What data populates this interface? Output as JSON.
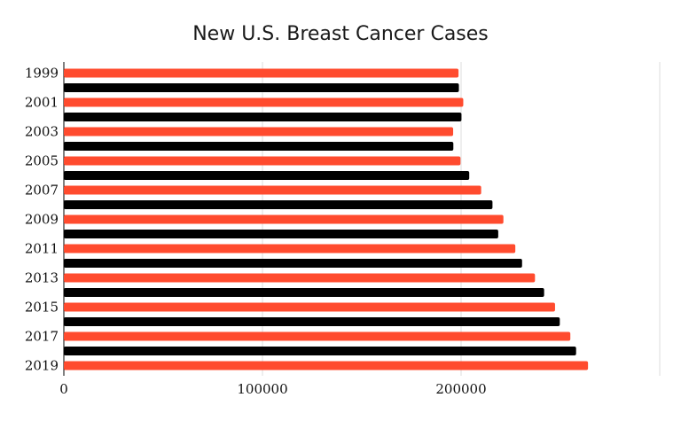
{
  "chart_data": {
    "type": "bar",
    "orientation": "horizontal",
    "title": "New U.S. Breast Cancer Cases",
    "categories": [
      "1999",
      "2000",
      "2001",
      "2002",
      "2003",
      "2004",
      "2005",
      "2006",
      "2007",
      "2008",
      "2009",
      "2010",
      "2011",
      "2012",
      "2013",
      "2014",
      "2015",
      "2016",
      "2017",
      "2018",
      "2019"
    ],
    "values": [
      198700,
      198900,
      201100,
      200200,
      196000,
      196100,
      199700,
      204100,
      210100,
      215800,
      221300,
      218700,
      227300,
      230700,
      237200,
      241800,
      247300,
      249700,
      255000,
      257900,
      263900
    ],
    "y_tick_labels": [
      "1999",
      "2001",
      "2003",
      "2005",
      "2007",
      "2009",
      "2011",
      "2013",
      "2015",
      "2017",
      "2019"
    ],
    "x_tick_labels": [
      "0",
      "100000",
      "200000"
    ],
    "xlim": [
      0,
      300000
    ],
    "bar_colors": [
      "#ff4b2e",
      "#000000"
    ],
    "grid": true,
    "legend": false
  }
}
